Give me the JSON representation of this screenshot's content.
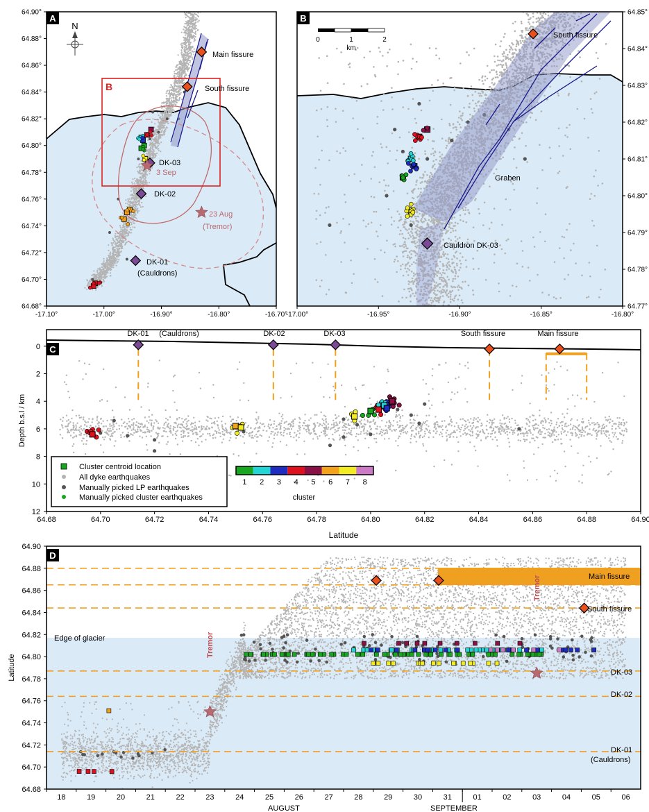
{
  "colors": {
    "glacier": "#dbeaf7",
    "eq": "#b4b4b4",
    "lp": "#555555",
    "fissure": "#f0a020",
    "vent": "#e8501e",
    "cauldron": "#7a4a95",
    "star": "#b86a70",
    "fault": "#1a1a8c",
    "dyke_band": "#8f95c8",
    "box_b": "#dd2222"
  },
  "panel_labels": [
    "A",
    "B",
    "C",
    "D"
  ],
  "cluster_colors": [
    "#18a81f",
    "#23d5d5",
    "#1f2cc2",
    "#e0101e",
    "#8a1045",
    "#f3a21a",
    "#f3ec21",
    "#cc7ac6"
  ],
  "panel_a": {
    "north_label": "N",
    "inset_label": "B",
    "x_ticks": [
      "-17.10°",
      "-17.00°",
      "-16.90°",
      "-16.80°",
      "-16.70°"
    ],
    "y_ticks": [
      "64.68°",
      "64.70°",
      "64.72°",
      "64.74°",
      "64.76°",
      "64.78°",
      "64.80°",
      "64.82°",
      "64.84°",
      "64.86°",
      "64.88°",
      "64.90°"
    ],
    "labels": {
      "main_fissure": "Main fissure",
      "south_fissure": "South fissure",
      "dk03": "DK-03",
      "sep3": "3 Sep",
      "dk02": "DK-02",
      "aug23": "23 Aug",
      "tremor": "(Tremor)",
      "dk01": "DK-01",
      "cauldrons": "(Cauldrons)"
    },
    "points": [
      {
        "lon": -16.83,
        "lat": 64.87,
        "kind": "vent"
      },
      {
        "lon": -16.855,
        "lat": 64.844,
        "kind": "vent"
      },
      {
        "lon": -16.92,
        "lat": 64.787,
        "kind": "cauldron"
      },
      {
        "lon": -16.935,
        "lat": 64.764,
        "kind": "cauldron"
      },
      {
        "lon": -16.945,
        "lat": 64.714,
        "kind": "cauldron"
      },
      {
        "lon": -16.925,
        "lat": 64.785,
        "kind": "star"
      },
      {
        "lon": -16.83,
        "lat": 64.75,
        "kind": "star"
      }
    ]
  },
  "panel_b": {
    "scale_ticks": [
      "0",
      "1",
      "2"
    ],
    "scale_unit": "km",
    "x_ticks": [
      "-17.00°",
      "-16.95°",
      "-16.90°",
      "-16.85°",
      "-16.80°"
    ],
    "y_ticks": [
      "64.77°",
      "64.78°",
      "64.79°",
      "64.80°",
      "64.81°",
      "64.82°",
      "64.83°",
      "64.84°",
      "64.85°"
    ],
    "labels": {
      "south_fissure": "South fissure",
      "graben": "Graben",
      "cauldron": "Cauldron DK-03"
    }
  },
  "panel_c": {
    "xlabel": "Latitude",
    "ylabel": "Depth b.s.l / km",
    "x_ticks": [
      "64.68",
      "64.70",
      "64.72",
      "64.74",
      "64.76",
      "64.78",
      "64.80",
      "64.82",
      "64.84",
      "64.86",
      "64.88",
      "64.90"
    ],
    "y_ticks": [
      "0",
      "2",
      "4",
      "6",
      "8",
      "10",
      "12"
    ],
    "xlim": [
      64.68,
      64.9
    ],
    "ylim": [
      12,
      -1.2
    ],
    "top_labels": {
      "dk01": "DK-01",
      "cauldrons": "(Cauldrons)",
      "dk02": "DK-02",
      "dk03": "DK-03",
      "south": "South fissure",
      "main": "Main fissure"
    },
    "markers": [
      {
        "lat": 64.714,
        "depth": -0.1,
        "kind": "cauldron"
      },
      {
        "lat": 64.764,
        "depth": -0.1,
        "kind": "cauldron"
      },
      {
        "lat": 64.787,
        "depth": -0.1,
        "kind": "cauldron"
      },
      {
        "lat": 64.844,
        "depth": 0.2,
        "kind": "vent"
      },
      {
        "lat": 64.87,
        "depth": 0.2,
        "kind": "vent"
      }
    ],
    "legend": {
      "centroid": "Cluster centroid location",
      "all": "All dyke earthquakes",
      "lp": "Manually picked LP earthquakes",
      "cluster_eq": "Manually picked cluster earthquakes"
    },
    "colorbar_ticks": [
      "1",
      "2",
      "3",
      "4",
      "5",
      "6",
      "7",
      "8"
    ],
    "colorbar_label": "cluster"
  },
  "panel_d": {
    "ylabel": "Latitude",
    "y_ticks": [
      "64.68",
      "64.70",
      "64.72",
      "64.74",
      "64.76",
      "64.78",
      "64.80",
      "64.82",
      "64.84",
      "64.86",
      "64.88",
      "64.90"
    ],
    "ylim": [
      64.68,
      64.9
    ],
    "x_ticks": [
      "18",
      "19",
      "20",
      "21",
      "22",
      "23",
      "24",
      "25",
      "26",
      "27",
      "28",
      "29",
      "30",
      "31",
      "01",
      "02",
      "03",
      "04",
      "05",
      "06"
    ],
    "months": [
      "AUGUST",
      "SEPTEMBER"
    ],
    "glacier_label": "Edge of glacier",
    "right_labels": {
      "main": "Main fissure",
      "south": "South fissure",
      "dk03": "DK-03",
      "dk02": "DK-02",
      "dk01": "DK-01",
      "cauldrons": "(Cauldrons)"
    },
    "tremor_label": "Tremor",
    "h_lines": [
      64.88,
      64.865,
      64.844,
      64.787,
      64.764,
      64.714
    ],
    "vents": [
      {
        "day": 28.6,
        "lat": 64.869
      },
      {
        "day": 30.7,
        "lat": 64.869
      },
      {
        "day": 35.6,
        "lat": 64.844
      }
    ],
    "stars": [
      {
        "day": 23.0,
        "lat": 64.75
      },
      {
        "day": 34.0,
        "lat": 64.785
      }
    ]
  }
}
